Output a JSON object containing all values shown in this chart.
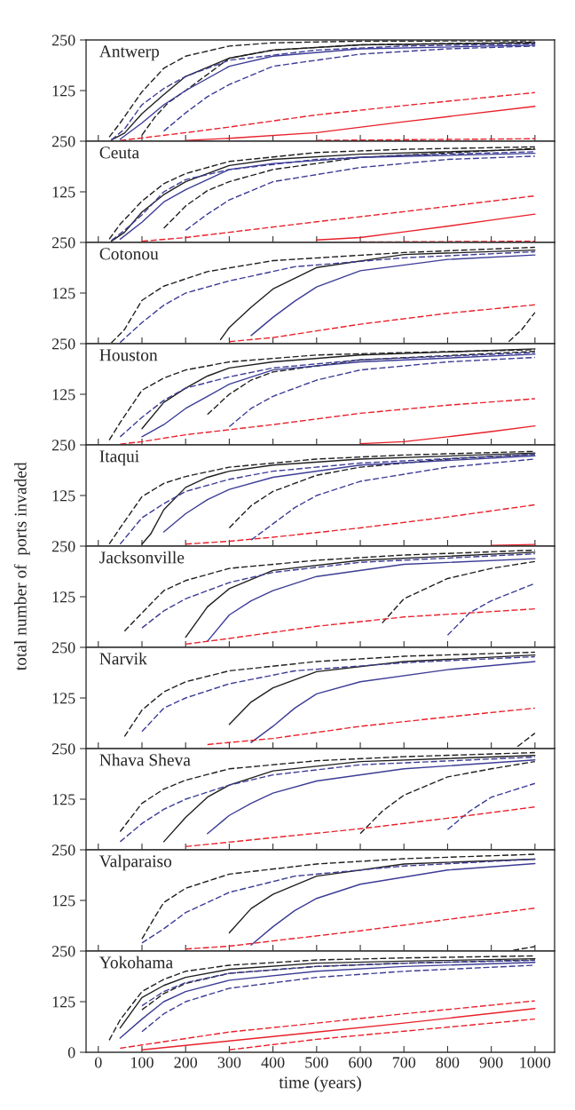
{
  "chart_data": [
    {
      "type": "line",
      "title": "Antwerp",
      "xlim": [
        -28,
        1045
      ],
      "ylim": [
        0,
        250
      ],
      "xticks": [
        0,
        100,
        200,
        300,
        400,
        500,
        600,
        700,
        800,
        900,
        1000
      ],
      "yticks": [
        125,
        250
      ],
      "tick_labels": "y",
      "grid": false,
      "legend": false,
      "series": [
        {
          "color": "#1f1f1f",
          "line_style": "dashed",
          "x": [
            25,
            50,
            100,
            150,
            200,
            300,
            400,
            600,
            1000
          ],
          "values": [
            10,
            45,
            122,
            180,
            210,
            235,
            243,
            247,
            248
          ]
        },
        {
          "color": "#1f1f1f",
          "line_style": "solid",
          "x": [
            30,
            60,
            100,
            150,
            200,
            300,
            400,
            600,
            1000
          ],
          "values": [
            3,
            20,
            68,
            115,
            160,
            205,
            225,
            238,
            243
          ]
        },
        {
          "color": "#1f1f1f",
          "line_style": "dashed",
          "x": [
            100,
            130,
            160,
            200,
            300,
            400,
            600,
            1000
          ],
          "values": [
            15,
            60,
            95,
            125,
            205,
            225,
            238,
            244
          ]
        },
        {
          "color": "#3c3c96",
          "line_style": "dashed",
          "x": [
            30,
            60,
            100,
            150,
            200,
            300,
            500,
            700,
            1000
          ],
          "values": [
            3,
            30,
            90,
            130,
            160,
            200,
            225,
            235,
            240
          ]
        },
        {
          "color": "#3c3c96",
          "line_style": "solid",
          "x": [
            50,
            100,
            150,
            200,
            300,
            400,
            600,
            1000
          ],
          "values": [
            5,
            45,
            90,
            125,
            185,
            210,
            228,
            237
          ]
        },
        {
          "color": "#3c3c96",
          "line_style": "dashed",
          "x": [
            150,
            200,
            250,
            300,
            400,
            600,
            800,
            1000
          ],
          "values": [
            25,
            70,
            110,
            140,
            185,
            215,
            228,
            235
          ]
        },
        {
          "color": "#e8202a",
          "line_style": "dashed",
          "x": [
            50,
            100,
            200,
            300,
            500,
            700,
            1000
          ],
          "values": [
            2,
            8,
            21,
            35,
            65,
            88,
            120
          ]
        },
        {
          "color": "#e8202a",
          "line_style": "solid",
          "x": [
            200,
            300,
            500,
            700,
            1000
          ],
          "values": [
            2,
            7,
            21,
            48,
            86
          ]
        },
        {
          "color": "#e8202a",
          "line_style": "dashed",
          "x": [
            500,
            1000
          ],
          "values": [
            2,
            6
          ]
        }
      ]
    },
    {
      "type": "line",
      "title": "Ceuta",
      "xlim": [
        -28,
        1045
      ],
      "ylim": [
        0,
        250
      ],
      "xticks": [
        0,
        100,
        200,
        300,
        400,
        500,
        600,
        700,
        800,
        900,
        1000
      ],
      "yticks": [
        125,
        250
      ],
      "tick_labels": "y",
      "grid": false,
      "legend": false,
      "series": [
        {
          "color": "#1f1f1f",
          "line_style": "dashed",
          "x": [
            25,
            50,
            100,
            150,
            200,
            300,
            500,
            700,
            1000
          ],
          "values": [
            8,
            45,
            102,
            145,
            170,
            200,
            222,
            230,
            236
          ]
        },
        {
          "color": "#1f1f1f",
          "line_style": "solid",
          "x": [
            30,
            60,
            100,
            150,
            200,
            300,
            400,
            600,
            1000
          ],
          "values": [
            3,
            25,
            75,
            118,
            150,
            190,
            205,
            218,
            230
          ]
        },
        {
          "color": "#1f1f1f",
          "line_style": "dashed",
          "x": [
            150,
            200,
            250,
            300,
            400,
            600,
            1000
          ],
          "values": [
            35,
            90,
            128,
            150,
            180,
            210,
            232
          ]
        },
        {
          "color": "#3c3c96",
          "line_style": "dashed",
          "x": [
            30,
            60,
            100,
            150,
            200,
            300,
            500,
            700,
            1000
          ],
          "values": [
            5,
            30,
            68,
            125,
            155,
            180,
            205,
            215,
            224
          ]
        },
        {
          "color": "#3c3c96",
          "line_style": "solid",
          "x": [
            50,
            100,
            150,
            200,
            300,
            400,
            600,
            1000
          ],
          "values": [
            8,
            50,
            100,
            130,
            180,
            195,
            210,
            220
          ]
        },
        {
          "color": "#3c3c96",
          "line_style": "dashed",
          "x": [
            200,
            250,
            300,
            400,
            600,
            800,
            1000
          ],
          "values": [
            30,
            70,
            105,
            150,
            185,
            205,
            213
          ]
        },
        {
          "color": "#e8202a",
          "line_style": "dashed",
          "x": [
            100,
            200,
            300,
            500,
            700,
            1000
          ],
          "values": [
            3,
            12,
            25,
            51,
            76,
            115
          ]
        },
        {
          "color": "#e8202a",
          "line_style": "solid",
          "x": [
            500,
            600,
            700,
            800,
            900,
            1000
          ],
          "values": [
            6,
            12,
            26,
            40,
            55,
            70
          ]
        },
        {
          "color": "#e8202a",
          "line_style": "dashed",
          "x": [
            600,
            1000
          ],
          "values": [
            1,
            3
          ]
        }
      ]
    },
    {
      "type": "line",
      "title": "Cotonou",
      "xlim": [
        -28,
        1045
      ],
      "ylim": [
        0,
        250
      ],
      "xticks": [
        0,
        100,
        200,
        300,
        400,
        500,
        600,
        700,
        800,
        900,
        1000
      ],
      "yticks": [
        125,
        250
      ],
      "tick_labels": "y",
      "grid": false,
      "legend": false,
      "series": [
        {
          "color": "#1f1f1f",
          "line_style": "dashed",
          "x": [
            30,
            60,
            100,
            150,
            250,
            400,
            700,
            1000
          ],
          "values": [
            2,
            35,
            107,
            142,
            178,
            205,
            225,
            238
          ]
        },
        {
          "color": "#1f1f1f",
          "line_style": "solid",
          "x": [
            280,
            300,
            350,
            400,
            500,
            700,
            1000
          ],
          "values": [
            10,
            40,
            90,
            135,
            188,
            220,
            231
          ]
        },
        {
          "color": "#1f1f1f",
          "line_style": "dashed",
          "x": [
            940,
            970,
            1000
          ],
          "values": [
            5,
            35,
            77
          ]
        },
        {
          "color": "#3c3c96",
          "line_style": "dashed",
          "x": [
            50,
            100,
            150,
            200,
            300,
            450,
            700,
            1000
          ],
          "values": [
            3,
            52,
            95,
            125,
            155,
            190,
            212,
            227
          ]
        },
        {
          "color": "#3c3c96",
          "line_style": "solid",
          "x": [
            350,
            400,
            450,
            500,
            600,
            800,
            1000
          ],
          "values": [
            20,
            65,
            105,
            140,
            180,
            208,
            219
          ]
        },
        {
          "color": "#e8202a",
          "line_style": "dashed",
          "x": [
            300,
            400,
            600,
            800,
            1000
          ],
          "values": [
            5,
            15,
            48,
            75,
            96
          ]
        }
      ]
    },
    {
      "type": "line",
      "title": "Houston",
      "xlim": [
        -28,
        1045
      ],
      "ylim": [
        0,
        250
      ],
      "xticks": [
        0,
        100,
        200,
        300,
        400,
        500,
        600,
        700,
        800,
        900,
        1000
      ],
      "yticks": [
        125,
        250
      ],
      "tick_labels": "y",
      "grid": false,
      "legend": false,
      "series": [
        {
          "color": "#1f1f1f",
          "line_style": "dashed",
          "x": [
            25,
            50,
            100,
            150,
            200,
            300,
            500,
            700,
            1000
          ],
          "values": [
            12,
            55,
            135,
            165,
            185,
            205,
            222,
            228,
            235
          ]
        },
        {
          "color": "#1f1f1f",
          "line_style": "solid",
          "x": [
            100,
            150,
            200,
            250,
            300,
            400,
            600,
            1000
          ],
          "values": [
            40,
            105,
            140,
            170,
            190,
            205,
            222,
            237
          ]
        },
        {
          "color": "#1f1f1f",
          "line_style": "dashed",
          "x": [
            250,
            300,
            350,
            400,
            600,
            1000
          ],
          "values": [
            75,
            125,
            160,
            180,
            210,
            231
          ]
        },
        {
          "color": "#3c3c96",
          "line_style": "dashed",
          "x": [
            50,
            100,
            150,
            200,
            300,
            400,
            600,
            1000
          ],
          "values": [
            20,
            68,
            110,
            140,
            168,
            190,
            210,
            228
          ]
        },
        {
          "color": "#3c3c96",
          "line_style": "solid",
          "x": [
            100,
            150,
            200,
            250,
            300,
            400,
            600,
            1000
          ],
          "values": [
            20,
            50,
            90,
            120,
            150,
            185,
            205,
            224
          ]
        },
        {
          "color": "#3c3c96",
          "line_style": "dashed",
          "x": [
            300,
            350,
            400,
            500,
            600,
            800,
            1000
          ],
          "values": [
            45,
            90,
            120,
            160,
            185,
            205,
            216
          ]
        },
        {
          "color": "#e8202a",
          "line_style": "dashed",
          "x": [
            50,
            100,
            200,
            400,
            600,
            800,
            1000
          ],
          "values": [
            2,
            8,
            25,
            50,
            78,
            98,
            114
          ]
        },
        {
          "color": "#e8202a",
          "line_style": "solid",
          "x": [
            600,
            700,
            800,
            900,
            1000
          ],
          "values": [
            3,
            8,
            20,
            33,
            47
          ]
        }
      ]
    },
    {
      "type": "line",
      "title": "Itaqui",
      "xlim": [
        -28,
        1045
      ],
      "ylim": [
        0,
        250
      ],
      "xticks": [
        0,
        100,
        200,
        300,
        400,
        500,
        600,
        700,
        800,
        900,
        1000
      ],
      "yticks": [
        125,
        250
      ],
      "tick_labels": "y",
      "grid": false,
      "legend": false,
      "series": [
        {
          "color": "#1f1f1f",
          "line_style": "dashed",
          "x": [
            25,
            50,
            100,
            150,
            200,
            300,
            500,
            700,
            1000
          ],
          "values": [
            5,
            45,
            122,
            155,
            172,
            195,
            215,
            225,
            234
          ]
        },
        {
          "color": "#1f1f1f",
          "line_style": "solid",
          "x": [
            100,
            120,
            150,
            200,
            250,
            300,
            400,
            600,
            1000
          ],
          "values": [
            5,
            30,
            90,
            145,
            170,
            185,
            200,
            215,
            230
          ]
        },
        {
          "color": "#1f1f1f",
          "line_style": "dashed",
          "x": [
            300,
            350,
            400,
            500,
            600,
            800,
            1000
          ],
          "values": [
            45,
            100,
            135,
            175,
            195,
            215,
            227
          ]
        },
        {
          "color": "#3c3c96",
          "line_style": "dashed",
          "x": [
            50,
            100,
            150,
            200,
            300,
            400,
            600,
            1000
          ],
          "values": [
            5,
            70,
            105,
            135,
            165,
            185,
            205,
            227
          ]
        },
        {
          "color": "#3c3c96",
          "line_style": "solid",
          "x": [
            150,
            200,
            250,
            300,
            400,
            600,
            1000
          ],
          "values": [
            35,
            80,
            115,
            140,
            170,
            200,
            223
          ]
        },
        {
          "color": "#3c3c96",
          "line_style": "dashed",
          "x": [
            350,
            400,
            450,
            500,
            600,
            800,
            1000
          ],
          "values": [
            15,
            55,
            95,
            125,
            160,
            195,
            215
          ]
        },
        {
          "color": "#e8202a",
          "line_style": "dashed",
          "x": [
            200,
            300,
            400,
            600,
            800,
            1000
          ],
          "values": [
            5,
            12,
            22,
            45,
            72,
            102
          ]
        },
        {
          "color": "#e8202a",
          "line_style": "solid",
          "x": [
            900,
            1000
          ],
          "values": [
            2,
            4
          ]
        }
      ]
    },
    {
      "type": "line",
      "title": "Jacksonville",
      "ylabel": "total number of  ports invaded",
      "xlim": [
        -28,
        1045
      ],
      "ylim": [
        0,
        250
      ],
      "xticks": [
        0,
        100,
        200,
        300,
        400,
        500,
        600,
        700,
        800,
        900,
        1000
      ],
      "yticks": [
        125,
        250
      ],
      "tick_labels": "y",
      "grid": false,
      "legend": false,
      "series": [
        {
          "color": "#1f1f1f",
          "line_style": "dashed",
          "x": [
            60,
            100,
            150,
            200,
            300,
            500,
            700,
            1000
          ],
          "values": [
            40,
            85,
            140,
            165,
            195,
            215,
            228,
            240
          ]
        },
        {
          "color": "#1f1f1f",
          "line_style": "solid",
          "x": [
            200,
            250,
            300,
            400,
            600,
            800,
            1000
          ],
          "values": [
            25,
            100,
            145,
            190,
            215,
            225,
            235
          ]
        },
        {
          "color": "#1f1f1f",
          "line_style": "dashed",
          "x": [
            650,
            700,
            800,
            900,
            1000
          ],
          "values": [
            60,
            120,
            170,
            195,
            212
          ]
        },
        {
          "color": "#3c3c96",
          "line_style": "dashed",
          "x": [
            100,
            150,
            200,
            300,
            400,
            600,
            1000
          ],
          "values": [
            48,
            90,
            120,
            160,
            185,
            210,
            231
          ]
        },
        {
          "color": "#3c3c96",
          "line_style": "solid",
          "x": [
            250,
            300,
            350,
            400,
            500,
            700,
            1000
          ],
          "values": [
            15,
            80,
            115,
            140,
            175,
            205,
            219
          ]
        },
        {
          "color": "#3c3c96",
          "line_style": "dashed",
          "x": [
            800,
            850,
            900,
            1000
          ],
          "values": [
            30,
            85,
            115,
            158
          ]
        },
        {
          "color": "#e8202a",
          "line_style": "dashed",
          "x": [
            200,
            300,
            500,
            700,
            1000
          ],
          "values": [
            8,
            22,
            52,
            75,
            95
          ]
        }
      ]
    },
    {
      "type": "line",
      "title": "Narvik",
      "xlim": [
        -28,
        1045
      ],
      "ylim": [
        0,
        250
      ],
      "xticks": [
        0,
        100,
        200,
        300,
        400,
        500,
        600,
        700,
        800,
        900,
        1000
      ],
      "yticks": [
        125,
        250
      ],
      "tick_labels": "y",
      "grid": false,
      "legend": false,
      "series": [
        {
          "color": "#1f1f1f",
          "line_style": "dashed",
          "x": [
            60,
            100,
            150,
            200,
            300,
            500,
            700,
            1000
          ],
          "values": [
            30,
            95,
            140,
            165,
            192,
            215,
            228,
            238
          ]
        },
        {
          "color": "#1f1f1f",
          "line_style": "solid",
          "x": [
            300,
            350,
            400,
            500,
            700,
            1000
          ],
          "values": [
            60,
            115,
            150,
            190,
            215,
            231
          ]
        },
        {
          "color": "#1f1f1f",
          "line_style": "dashed",
          "x": [
            960,
            1000
          ],
          "values": [
            5,
            38
          ]
        },
        {
          "color": "#3c3c96",
          "line_style": "dashed",
          "x": [
            100,
            150,
            200,
            300,
            450,
            700,
            1000
          ],
          "values": [
            42,
            100,
            125,
            160,
            192,
            212,
            227
          ]
        },
        {
          "color": "#3c3c96",
          "line_style": "solid",
          "x": [
            350,
            400,
            450,
            500,
            600,
            800,
            1000
          ],
          "values": [
            15,
            55,
            100,
            135,
            165,
            195,
            215
          ]
        },
        {
          "color": "#e8202a",
          "line_style": "dashed",
          "x": [
            250,
            400,
            600,
            800,
            1000
          ],
          "values": [
            10,
            25,
            55,
            78,
            100
          ]
        }
      ]
    },
    {
      "type": "line",
      "title": "Nhava Sheva",
      "xlim": [
        -28,
        1045
      ],
      "ylim": [
        0,
        250
      ],
      "xticks": [
        0,
        100,
        200,
        300,
        400,
        500,
        600,
        700,
        800,
        900,
        1000
      ],
      "yticks": [
        125,
        250
      ],
      "tick_labels": "y",
      "grid": false,
      "legend": false,
      "series": [
        {
          "color": "#1f1f1f",
          "line_style": "dashed",
          "x": [
            50,
            100,
            150,
            200,
            300,
            500,
            700,
            1000
          ],
          "values": [
            45,
            115,
            150,
            172,
            200,
            220,
            230,
            240
          ]
        },
        {
          "color": "#1f1f1f",
          "line_style": "solid",
          "x": [
            150,
            200,
            250,
            300,
            400,
            600,
            1000
          ],
          "values": [
            20,
            80,
            130,
            160,
            195,
            218,
            233
          ]
        },
        {
          "color": "#1f1f1f",
          "line_style": "dashed",
          "x": [
            600,
            650,
            700,
            800,
            900,
            1000
          ],
          "values": [
            40,
            95,
            135,
            180,
            200,
            218
          ]
        },
        {
          "color": "#3c3c96",
          "line_style": "dashed",
          "x": [
            50,
            100,
            150,
            200,
            300,
            400,
            600,
            1000
          ],
          "values": [
            20,
            65,
            100,
            125,
            160,
            185,
            210,
            229
          ]
        },
        {
          "color": "#3c3c96",
          "line_style": "solid",
          "x": [
            250,
            300,
            350,
            400,
            500,
            700,
            1000
          ],
          "values": [
            40,
            85,
            115,
            140,
            170,
            200,
            222
          ]
        },
        {
          "color": "#3c3c96",
          "line_style": "dashed",
          "x": [
            800,
            850,
            900,
            1000
          ],
          "values": [
            50,
            95,
            130,
            164
          ]
        },
        {
          "color": "#e8202a",
          "line_style": "dashed",
          "x": [
            200,
            400,
            600,
            800,
            1000
          ],
          "values": [
            8,
            30,
            52,
            78,
            106
          ]
        }
      ]
    },
    {
      "type": "line",
      "title": "Valparaiso",
      "xlim": [
        -28,
        1045
      ],
      "ylim": [
        0,
        250
      ],
      "xticks": [
        0,
        100,
        200,
        300,
        400,
        500,
        600,
        700,
        800,
        900,
        1000
      ],
      "yticks": [
        125,
        250
      ],
      "tick_labels": "y",
      "grid": false,
      "legend": false,
      "series": [
        {
          "color": "#1f1f1f",
          "line_style": "dashed",
          "x": [
            100,
            130,
            150,
            200,
            300,
            500,
            700,
            1000
          ],
          "values": [
            30,
            85,
            120,
            155,
            190,
            215,
            228,
            239
          ]
        },
        {
          "color": "#1f1f1f",
          "line_style": "solid",
          "x": [
            300,
            350,
            400,
            500,
            700,
            1000
          ],
          "values": [
            45,
            105,
            140,
            185,
            215,
            227
          ]
        },
        {
          "color": "#1f1f1f",
          "line_style": "dashed",
          "x": [
            950,
            1000
          ],
          "values": [
            2,
            11
          ]
        },
        {
          "color": "#3c3c96",
          "line_style": "dashed",
          "x": [
            100,
            150,
            200,
            300,
            450,
            700,
            1000
          ],
          "values": [
            20,
            55,
            95,
            145,
            185,
            210,
            227
          ]
        },
        {
          "color": "#3c3c96",
          "line_style": "solid",
          "x": [
            350,
            400,
            450,
            500,
            600,
            800,
            1000
          ],
          "values": [
            15,
            60,
            100,
            130,
            165,
            200,
            216
          ]
        },
        {
          "color": "#e8202a",
          "line_style": "dashed",
          "x": [
            200,
            300,
            400,
            600,
            800,
            1000
          ],
          "values": [
            5,
            12,
            25,
            50,
            78,
            106
          ]
        }
      ]
    },
    {
      "type": "line",
      "title": "Yokohama",
      "xlabel": "time (years)",
      "xlim": [
        -28,
        1045
      ],
      "ylim": [
        0,
        250
      ],
      "xticks": [
        0,
        100,
        200,
        300,
        400,
        500,
        600,
        700,
        800,
        900,
        1000
      ],
      "yticks": [
        0,
        125,
        250
      ],
      "grid": false,
      "legend": false,
      "series": [
        {
          "color": "#1f1f1f",
          "line_style": "dashed",
          "x": [
            25,
            50,
            100,
            150,
            200,
            300,
            500,
            700,
            1000
          ],
          "values": [
            30,
            80,
            150,
            180,
            200,
            215,
            228,
            233,
            238
          ]
        },
        {
          "color": "#1f1f1f",
          "line_style": "solid",
          "x": [
            50,
            100,
            150,
            200,
            300,
            500,
            700,
            1000
          ],
          "values": [
            60,
            135,
            165,
            185,
            205,
            220,
            225,
            231
          ]
        },
        {
          "color": "#1f1f1f",
          "line_style": "dashed",
          "x": [
            100,
            150,
            200,
            300,
            500,
            700,
            1000
          ],
          "values": [
            105,
            145,
            170,
            195,
            212,
            220,
            228
          ]
        },
        {
          "color": "#3c3c96",
          "line_style": "dashed",
          "x": [
            100,
            150,
            200,
            300,
            500,
            700,
            1000
          ],
          "values": [
            115,
            150,
            172,
            195,
            212,
            220,
            227
          ]
        },
        {
          "color": "#3c3c96",
          "line_style": "solid",
          "x": [
            50,
            100,
            150,
            200,
            300,
            500,
            700,
            1000
          ],
          "values": [
            35,
            82,
            125,
            150,
            178,
            200,
            212,
            222
          ]
        },
        {
          "color": "#3c3c96",
          "line_style": "dashed",
          "x": [
            100,
            150,
            200,
            300,
            500,
            700,
            1000
          ],
          "values": [
            51,
            95,
            125,
            158,
            185,
            200,
            215
          ]
        },
        {
          "color": "#e8202a",
          "line_style": "dashed",
          "x": [
            50,
            100,
            300,
            500,
            700,
            1000
          ],
          "values": [
            10,
            18,
            50,
            72,
            95,
            127
          ]
        },
        {
          "color": "#e8202a",
          "line_style": "solid",
          "x": [
            100,
            300,
            500,
            700,
            1000
          ],
          "values": [
            6,
            28,
            50,
            72,
            108
          ]
        },
        {
          "color": "#e8202a",
          "line_style": "dashed",
          "x": [
            300,
            500,
            700,
            1000
          ],
          "values": [
            6,
            32,
            52,
            82
          ]
        }
      ]
    }
  ]
}
